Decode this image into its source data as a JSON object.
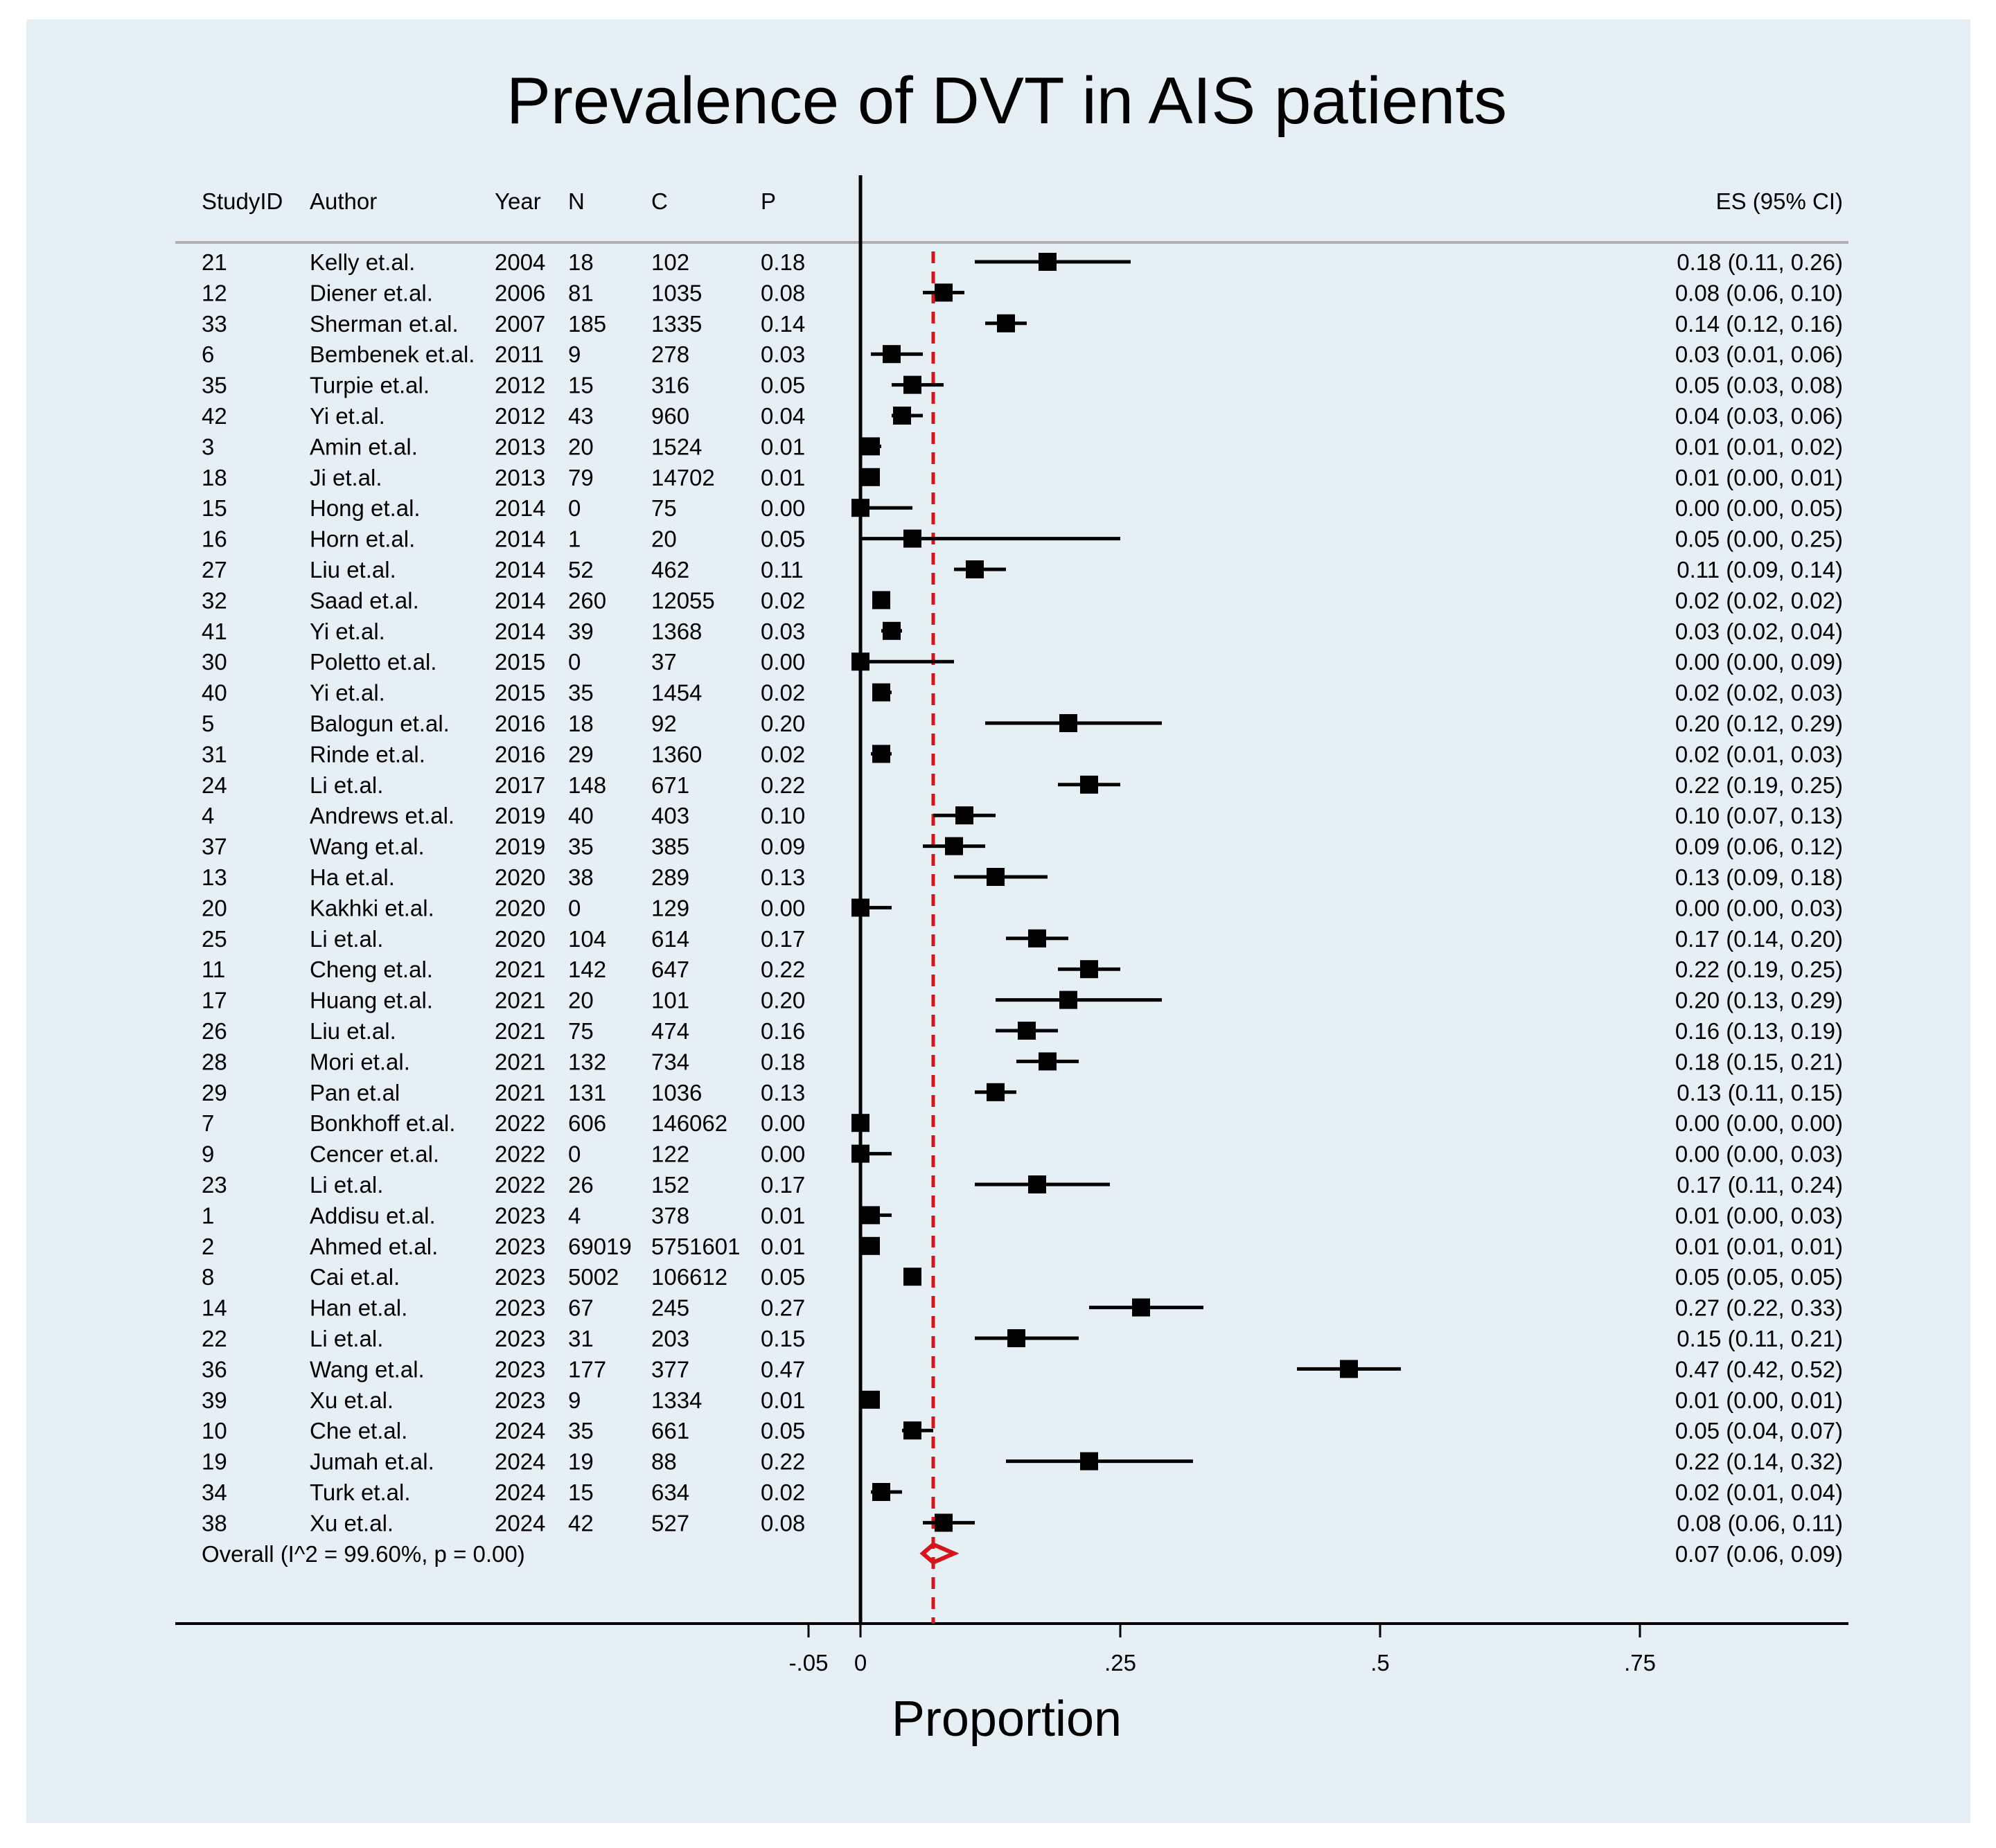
{
  "chart_data": {
    "type": "forest",
    "title": "Prevalence of DVT in AIS patients",
    "xlabel": "Proportion",
    "xlim": [
      -0.05,
      0.75
    ],
    "xticks": [
      -0.05,
      0,
      0.25,
      0.5,
      0.75
    ],
    "xtick_labels": [
      "-.05",
      "0",
      ".25",
      ".5",
      ".75"
    ],
    "null_line": 0,
    "reference_line": 0.07,
    "colors": {
      "background": "#e6eff3",
      "points": "#000000",
      "reference": "#d6141c",
      "overall": "#d6141c"
    },
    "column_headers": {
      "studyid": "StudyID",
      "author": "Author",
      "year": "Year",
      "n": "N",
      "c": "C",
      "p": "P",
      "es": "ES (95% CI)"
    },
    "studies": [
      {
        "studyid": "21",
        "author": "Kelly et.al.",
        "year": "2004",
        "n": "18",
        "c": "102",
        "p": "0.18",
        "es": 0.18,
        "lo": 0.11,
        "hi": 0.26,
        "es_text": "0.18 (0.11, 0.26)"
      },
      {
        "studyid": "12",
        "author": "Diener et.al.",
        "year": "2006",
        "n": "81",
        "c": "1035",
        "p": "0.08",
        "es": 0.08,
        "lo": 0.06,
        "hi": 0.1,
        "es_text": "0.08 (0.06, 0.10)"
      },
      {
        "studyid": "33",
        "author": "Sherman et.al.",
        "year": "2007",
        "n": "185",
        "c": "1335",
        "p": "0.14",
        "es": 0.14,
        "lo": 0.12,
        "hi": 0.16,
        "es_text": "0.14 (0.12, 0.16)"
      },
      {
        "studyid": "6",
        "author": "Bembenek et.al.",
        "year": "2011",
        "n": "9",
        "c": "278",
        "p": "0.03",
        "es": 0.03,
        "lo": 0.01,
        "hi": 0.06,
        "es_text": "0.03 (0.01, 0.06)"
      },
      {
        "studyid": "35",
        "author": "Turpie et.al.",
        "year": "2012",
        "n": "15",
        "c": "316",
        "p": "0.05",
        "es": 0.05,
        "lo": 0.03,
        "hi": 0.08,
        "es_text": "0.05 (0.03, 0.08)"
      },
      {
        "studyid": "42",
        "author": "Yi et.al.",
        "year": "2012",
        "n": "43",
        "c": "960",
        "p": "0.04",
        "es": 0.04,
        "lo": 0.03,
        "hi": 0.06,
        "es_text": "0.04 (0.03, 0.06)"
      },
      {
        "studyid": "3",
        "author": "Amin et.al.",
        "year": "2013",
        "n": "20",
        "c": "1524",
        "p": "0.01",
        "es": 0.01,
        "lo": 0.01,
        "hi": 0.02,
        "es_text": "0.01 (0.01, 0.02)"
      },
      {
        "studyid": "18",
        "author": "Ji et.al.",
        "year": "2013",
        "n": "79",
        "c": "14702",
        "p": "0.01",
        "es": 0.01,
        "lo": 0.0,
        "hi": 0.01,
        "es_text": "0.01 (0.00, 0.01)"
      },
      {
        "studyid": "15",
        "author": "Hong et.al.",
        "year": "2014",
        "n": "0",
        "c": "75",
        "p": "0.00",
        "es": 0.0,
        "lo": 0.0,
        "hi": 0.05,
        "es_text": "0.00 (0.00, 0.05)"
      },
      {
        "studyid": "16",
        "author": "Horn et.al.",
        "year": "2014",
        "n": "1",
        "c": "20",
        "p": "0.05",
        "es": 0.05,
        "lo": 0.0,
        "hi": 0.25,
        "es_text": "0.05 (0.00, 0.25)"
      },
      {
        "studyid": "27",
        "author": "Liu et.al.",
        "year": "2014",
        "n": "52",
        "c": "462",
        "p": "0.11",
        "es": 0.11,
        "lo": 0.09,
        "hi": 0.14,
        "es_text": "0.11 (0.09, 0.14)"
      },
      {
        "studyid": "32",
        "author": "Saad et.al.",
        "year": "2014",
        "n": "260",
        "c": "12055",
        "p": "0.02",
        "es": 0.02,
        "lo": 0.02,
        "hi": 0.02,
        "es_text": "0.02 (0.02, 0.02)"
      },
      {
        "studyid": "41",
        "author": "Yi et.al.",
        "year": "2014",
        "n": "39",
        "c": "1368",
        "p": "0.03",
        "es": 0.03,
        "lo": 0.02,
        "hi": 0.04,
        "es_text": "0.03 (0.02, 0.04)"
      },
      {
        "studyid": "30",
        "author": "Poletto et.al.",
        "year": "2015",
        "n": "0",
        "c": "37",
        "p": "0.00",
        "es": 0.0,
        "lo": 0.0,
        "hi": 0.09,
        "es_text": "0.00 (0.00, 0.09)"
      },
      {
        "studyid": "40",
        "author": "Yi et.al.",
        "year": "2015",
        "n": "35",
        "c": "1454",
        "p": "0.02",
        "es": 0.02,
        "lo": 0.02,
        "hi": 0.03,
        "es_text": "0.02 (0.02, 0.03)"
      },
      {
        "studyid": "5",
        "author": "Balogun et.al.",
        "year": "2016",
        "n": "18",
        "c": "92",
        "p": "0.20",
        "es": 0.2,
        "lo": 0.12,
        "hi": 0.29,
        "es_text": "0.20 (0.12, 0.29)"
      },
      {
        "studyid": "31",
        "author": "Rinde et.al.",
        "year": "2016",
        "n": "29",
        "c": "1360",
        "p": "0.02",
        "es": 0.02,
        "lo": 0.01,
        "hi": 0.03,
        "es_text": "0.02 (0.01, 0.03)"
      },
      {
        "studyid": "24",
        "author": "Li et.al.",
        "year": "2017",
        "n": "148",
        "c": "671",
        "p": "0.22",
        "es": 0.22,
        "lo": 0.19,
        "hi": 0.25,
        "es_text": "0.22 (0.19, 0.25)"
      },
      {
        "studyid": "4",
        "author": "Andrews et.al.",
        "year": "2019",
        "n": "40",
        "c": "403",
        "p": "0.10",
        "es": 0.1,
        "lo": 0.07,
        "hi": 0.13,
        "es_text": "0.10 (0.07, 0.13)"
      },
      {
        "studyid": "37",
        "author": "Wang et.al.",
        "year": "2019",
        "n": "35",
        "c": "385",
        "p": "0.09",
        "es": 0.09,
        "lo": 0.06,
        "hi": 0.12,
        "es_text": "0.09 (0.06, 0.12)"
      },
      {
        "studyid": "13",
        "author": "Ha et.al.",
        "year": "2020",
        "n": "38",
        "c": "289",
        "p": "0.13",
        "es": 0.13,
        "lo": 0.09,
        "hi": 0.18,
        "es_text": "0.13 (0.09, 0.18)"
      },
      {
        "studyid": "20",
        "author": "Kakhki et.al.",
        "year": "2020",
        "n": "0",
        "c": "129",
        "p": "0.00",
        "es": 0.0,
        "lo": 0.0,
        "hi": 0.03,
        "es_text": "0.00 (0.00, 0.03)"
      },
      {
        "studyid": "25",
        "author": "Li et.al.",
        "year": "2020",
        "n": "104",
        "c": "614",
        "p": "0.17",
        "es": 0.17,
        "lo": 0.14,
        "hi": 0.2,
        "es_text": "0.17 (0.14, 0.20)"
      },
      {
        "studyid": "11",
        "author": "Cheng et.al.",
        "year": "2021",
        "n": "142",
        "c": "647",
        "p": "0.22",
        "es": 0.22,
        "lo": 0.19,
        "hi": 0.25,
        "es_text": "0.22 (0.19, 0.25)"
      },
      {
        "studyid": "17",
        "author": "Huang et.al.",
        "year": "2021",
        "n": "20",
        "c": "101",
        "p": "0.20",
        "es": 0.2,
        "lo": 0.13,
        "hi": 0.29,
        "es_text": "0.20 (0.13, 0.29)"
      },
      {
        "studyid": "26",
        "author": "Liu et.al.",
        "year": "2021",
        "n": "75",
        "c": "474",
        "p": "0.16",
        "es": 0.16,
        "lo": 0.13,
        "hi": 0.19,
        "es_text": "0.16 (0.13, 0.19)"
      },
      {
        "studyid": "28",
        "author": "Mori et.al.",
        "year": "2021",
        "n": "132",
        "c": "734",
        "p": "0.18",
        "es": 0.18,
        "lo": 0.15,
        "hi": 0.21,
        "es_text": "0.18 (0.15, 0.21)"
      },
      {
        "studyid": "29",
        "author": "Pan et.al",
        "year": "2021",
        "n": "131",
        "c": "1036",
        "p": "0.13",
        "es": 0.13,
        "lo": 0.11,
        "hi": 0.15,
        "es_text": "0.13 (0.11, 0.15)"
      },
      {
        "studyid": "7",
        "author": "Bonkhoff et.al.",
        "year": "2022",
        "n": "606",
        "c": "146062",
        "p": "0.00",
        "es": 0.0,
        "lo": 0.0,
        "hi": 0.0,
        "es_text": "0.00 (0.00, 0.00)"
      },
      {
        "studyid": "9",
        "author": "Cencer et.al.",
        "year": "2022",
        "n": "0",
        "c": "122",
        "p": "0.00",
        "es": 0.0,
        "lo": 0.0,
        "hi": 0.03,
        "es_text": "0.00 (0.00, 0.03)"
      },
      {
        "studyid": "23",
        "author": "Li et.al.",
        "year": "2022",
        "n": "26",
        "c": "152",
        "p": "0.17",
        "es": 0.17,
        "lo": 0.11,
        "hi": 0.24,
        "es_text": "0.17 (0.11, 0.24)"
      },
      {
        "studyid": "1",
        "author": "Addisu et.al.",
        "year": "2023",
        "n": "4",
        "c": "378",
        "p": "0.01",
        "es": 0.01,
        "lo": 0.0,
        "hi": 0.03,
        "es_text": "0.01 (0.00, 0.03)"
      },
      {
        "studyid": "2",
        "author": "Ahmed et.al.",
        "year": "2023",
        "n": "69019",
        "c": "5751601",
        "p": "0.01",
        "es": 0.01,
        "lo": 0.01,
        "hi": 0.01,
        "es_text": "0.01 (0.01, 0.01)"
      },
      {
        "studyid": "8",
        "author": "Cai et.al.",
        "year": "2023",
        "n": "5002",
        "c": "106612",
        "p": "0.05",
        "es": 0.05,
        "lo": 0.05,
        "hi": 0.05,
        "es_text": "0.05 (0.05, 0.05)"
      },
      {
        "studyid": "14",
        "author": "Han et.al.",
        "year": "2023",
        "n": "67",
        "c": "245",
        "p": "0.27",
        "es": 0.27,
        "lo": 0.22,
        "hi": 0.33,
        "es_text": "0.27 (0.22, 0.33)"
      },
      {
        "studyid": "22",
        "author": "Li et.al.",
        "year": "2023",
        "n": "31",
        "c": "203",
        "p": "0.15",
        "es": 0.15,
        "lo": 0.11,
        "hi": 0.21,
        "es_text": "0.15 (0.11, 0.21)"
      },
      {
        "studyid": "36",
        "author": "Wang et.al.",
        "year": "2023",
        "n": "177",
        "c": "377",
        "p": "0.47",
        "es": 0.47,
        "lo": 0.42,
        "hi": 0.52,
        "es_text": "0.47 (0.42, 0.52)"
      },
      {
        "studyid": "39",
        "author": "Xu et.al.",
        "year": "2023",
        "n": "9",
        "c": "1334",
        "p": "0.01",
        "es": 0.01,
        "lo": 0.0,
        "hi": 0.01,
        "es_text": "0.01 (0.00, 0.01)"
      },
      {
        "studyid": "10",
        "author": "Che et.al.",
        "year": "2024",
        "n": "35",
        "c": "661",
        "p": "0.05",
        "es": 0.05,
        "lo": 0.04,
        "hi": 0.07,
        "es_text": "0.05 (0.04, 0.07)"
      },
      {
        "studyid": "19",
        "author": "Jumah et.al.",
        "year": "2024",
        "n": "19",
        "c": "88",
        "p": "0.22",
        "es": 0.22,
        "lo": 0.14,
        "hi": 0.32,
        "es_text": "0.22 (0.14, 0.32)"
      },
      {
        "studyid": "34",
        "author": "Turk et.al.",
        "year": "2024",
        "n": "15",
        "c": "634",
        "p": "0.02",
        "es": 0.02,
        "lo": 0.01,
        "hi": 0.04,
        "es_text": "0.02 (0.01, 0.04)"
      },
      {
        "studyid": "38",
        "author": "Xu et.al.",
        "year": "2024",
        "n": "42",
        "c": "527",
        "p": "0.08",
        "es": 0.08,
        "lo": 0.06,
        "hi": 0.11,
        "es_text": "0.08 (0.06, 0.11)"
      }
    ],
    "overall": {
      "label": "Overall  (I^2 = 99.60%, p = 0.00)",
      "es": 0.07,
      "lo": 0.06,
      "hi": 0.09,
      "es_text": "0.07 (0.06, 0.09)"
    }
  }
}
